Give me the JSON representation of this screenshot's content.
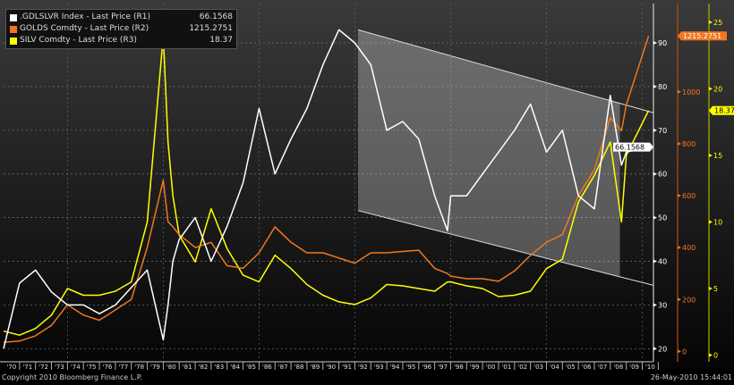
{
  "chart_data": {
    "type": "line",
    "title": "",
    "x": [
      1970,
      1971,
      1972,
      1973,
      1974,
      1975,
      1976,
      1977,
      1978,
      1979,
      1980,
      1980.3,
      1980.6,
      1981,
      1982,
      1983,
      1984,
      1985,
      1986,
      1987,
      1988,
      1989,
      1990,
      1991,
      1992,
      1993,
      1994,
      1995,
      1996,
      1997,
      1997.8,
      1998,
      1999,
      2000,
      2001,
      2002,
      2003,
      2004,
      2005,
      2006,
      2007,
      2008,
      2008.7,
      2009,
      2010.4
    ],
    "series": [
      {
        "name": ".GDLSLVR Index - Last Price (R1)",
        "last": "66.1568",
        "axis": "R1",
        "color": "#ffffff",
        "values": [
          20,
          35,
          38,
          33,
          30,
          30,
          28,
          30,
          34,
          38,
          22,
          30,
          40,
          45,
          50,
          40,
          48,
          58,
          75,
          60,
          68,
          75,
          85,
          93,
          90,
          85,
          70,
          72,
          68,
          55,
          47,
          55,
          55,
          60,
          65,
          70,
          76,
          65,
          70,
          55,
          52,
          78,
          62,
          65,
          66.16
        ]
      },
      {
        "name": "GOLDS Comdty - Last Price (R2)",
        "last": "1215.2751",
        "axis": "R2",
        "color": "#f07820",
        "values": [
          35,
          40,
          60,
          100,
          180,
          140,
          120,
          160,
          200,
          400,
          660,
          500,
          480,
          450,
          400,
          420,
          330,
          320,
          380,
          480,
          420,
          380,
          380,
          360,
          340,
          380,
          380,
          385,
          390,
          320,
          300,
          290,
          280,
          280,
          270,
          310,
          370,
          420,
          450,
          600,
          700,
          900,
          850,
          950,
          1215.28
        ]
      },
      {
        "name": "SILV Comdty - Last Price (R3)",
        "last": "18.37",
        "axis": "R3",
        "color": "#ffff00",
        "values": [
          1.8,
          1.5,
          2,
          3,
          5,
          4.5,
          4.5,
          4.8,
          5.5,
          10,
          24,
          16,
          12,
          9,
          7,
          11,
          8,
          6,
          5.5,
          7.5,
          6.5,
          5.3,
          4.5,
          4,
          3.8,
          4.3,
          5.3,
          5.2,
          5,
          4.8,
          5.5,
          5.5,
          5.2,
          5,
          4.4,
          4.5,
          4.8,
          6.5,
          7.2,
          11.5,
          13.5,
          16,
          10,
          15,
          18.37
        ]
      }
    ],
    "axes": {
      "x": {
        "ticks": [
          "'70",
          "'71",
          "'72",
          "'73",
          "'74",
          "'75",
          "'76",
          "'77",
          "'78",
          "'79",
          "'80",
          "'81",
          "'82",
          "'83",
          "'84",
          "'85",
          "'86",
          "'87",
          "'88",
          "'89",
          "'90",
          "'91",
          "'92",
          "'93",
          "'94",
          "'95",
          "'96",
          "'97",
          "'98",
          "'99",
          "'00",
          "'01",
          "'02",
          "'03",
          "'04",
          "'05",
          "'06",
          "'07",
          "'08",
          "'09",
          "'10"
        ],
        "range": [
          1970,
          2010.7
        ]
      },
      "R1": {
        "ticks": [
          20,
          30,
          40,
          50,
          60,
          70,
          80,
          90
        ],
        "range": [
          17,
          99
        ],
        "color": "#ffffff"
      },
      "R2": {
        "ticks": [
          0,
          200,
          400,
          600,
          800,
          1000
        ],
        "range": [
          -40,
          1340
        ],
        "color": "#f07820"
      },
      "R3": {
        "ticks": [
          0,
          5,
          10,
          15,
          20,
          25
        ],
        "range": [
          -0.5,
          26.4
        ],
        "color": "#ffff00"
      }
    },
    "channel": {
      "axis": "R1",
      "upper": [
        [
          1992.2,
          93
        ],
        [
          2010.7,
          74
        ]
      ],
      "lower": [
        [
          1992.2,
          51.6
        ],
        [
          2010.7,
          34.5
        ]
      ],
      "shade_end": 2008.6
    },
    "grid": true,
    "legend": "top-left"
  },
  "footer": {
    "copyright": "Copyright 2010 Bloomberg Finance L.P.",
    "timestamp": "26-May-2010 15:44:01"
  }
}
